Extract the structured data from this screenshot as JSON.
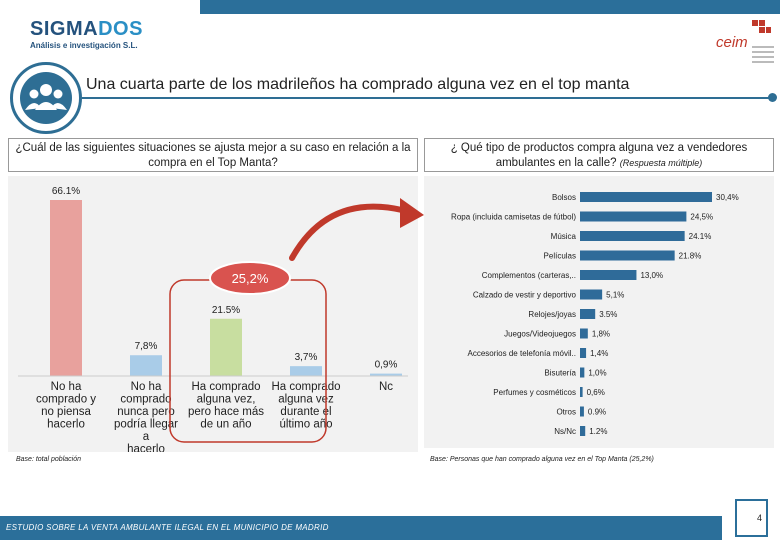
{
  "header": {
    "logo_name_a": "SIGMA",
    "logo_name_b": "DOS",
    "logo_sub": "Análisis e investigación S.L.",
    "ceim": "ceim",
    "title": "Una cuarta parte de los madrileños ha comprado alguna vez en el top manta"
  },
  "questions": {
    "q1": "¿Cuál de las siguientes situaciones se ajusta mejor a su caso en relación a la compra en el Top Manta?",
    "q2_main": "¿ Qué tipo de productos compra alguna vez a vendedores ambulantes en la calle?",
    "q2_note": "(Respuesta múltiple)"
  },
  "chart_data": [
    {
      "type": "bar",
      "categories": [
        [
          "No ha",
          "comprado y",
          "no piensa",
          "hacerlo"
        ],
        [
          "No ha",
          "comprado",
          "nunca pero",
          "podría llegar",
          "a",
          "hacerlo"
        ],
        [
          "Ha comprado",
          "alguna vez,",
          "pero hace más",
          "de un año"
        ],
        [
          "Ha comprado",
          "alguna vez",
          "durante el",
          "último año"
        ],
        [
          "Nc"
        ]
      ],
      "value_labels": [
        "66.1%",
        "7,8%",
        "21.5%",
        "3,7%",
        "0,9%"
      ],
      "values": [
        66.1,
        7.8,
        21.5,
        3.7,
        0.9
      ],
      "colors": [
        "#e8a19d",
        "#a9cce8",
        "#c8dea0",
        "#a9cce8",
        "#a9cce8"
      ],
      "highlight": "25,2%",
      "ylim": [
        0,
        70
      ]
    },
    {
      "type": "bar",
      "orientation": "horizontal",
      "categories": [
        "Bolsos",
        "Ropa (incluida camisetas de fútbol)",
        "Música",
        "Películas",
        "Complementos (carteras,..",
        "Calzado de vestir y deportivo",
        "Relojes/joyas",
        "Juegos/Videojuegos",
        "Accesorios de telefonía móvil..",
        "Bisutería",
        "Perfumes y cosméticos",
        "Otros",
        "Ns/Nc"
      ],
      "value_labels": [
        "30,4%",
        "24,5%",
        "24.1%",
        "21.8%",
        "13,0%",
        "5,1%",
        "3.5%",
        "1,8%",
        "1,4%",
        "1,0%",
        "0,6%",
        "0.9%",
        "1.2%"
      ],
      "values": [
        30.4,
        24.5,
        24.1,
        21.8,
        13.0,
        5.1,
        3.5,
        1.8,
        1.4,
        1.0,
        0.6,
        0.9,
        1.2
      ],
      "color": "#2f6b99",
      "xlim": [
        0,
        32
      ]
    }
  ],
  "bases": {
    "b1": "Base: total población",
    "b2": "Base: Personas que han comprado alguna vez en el Top Manta (25,2%)"
  },
  "footer": {
    "text": "ESTUDIO SOBRE LA VENTA AMBULANTE ILEGAL EN EL MUNICIPIO DE MADRID",
    "page": "4"
  }
}
